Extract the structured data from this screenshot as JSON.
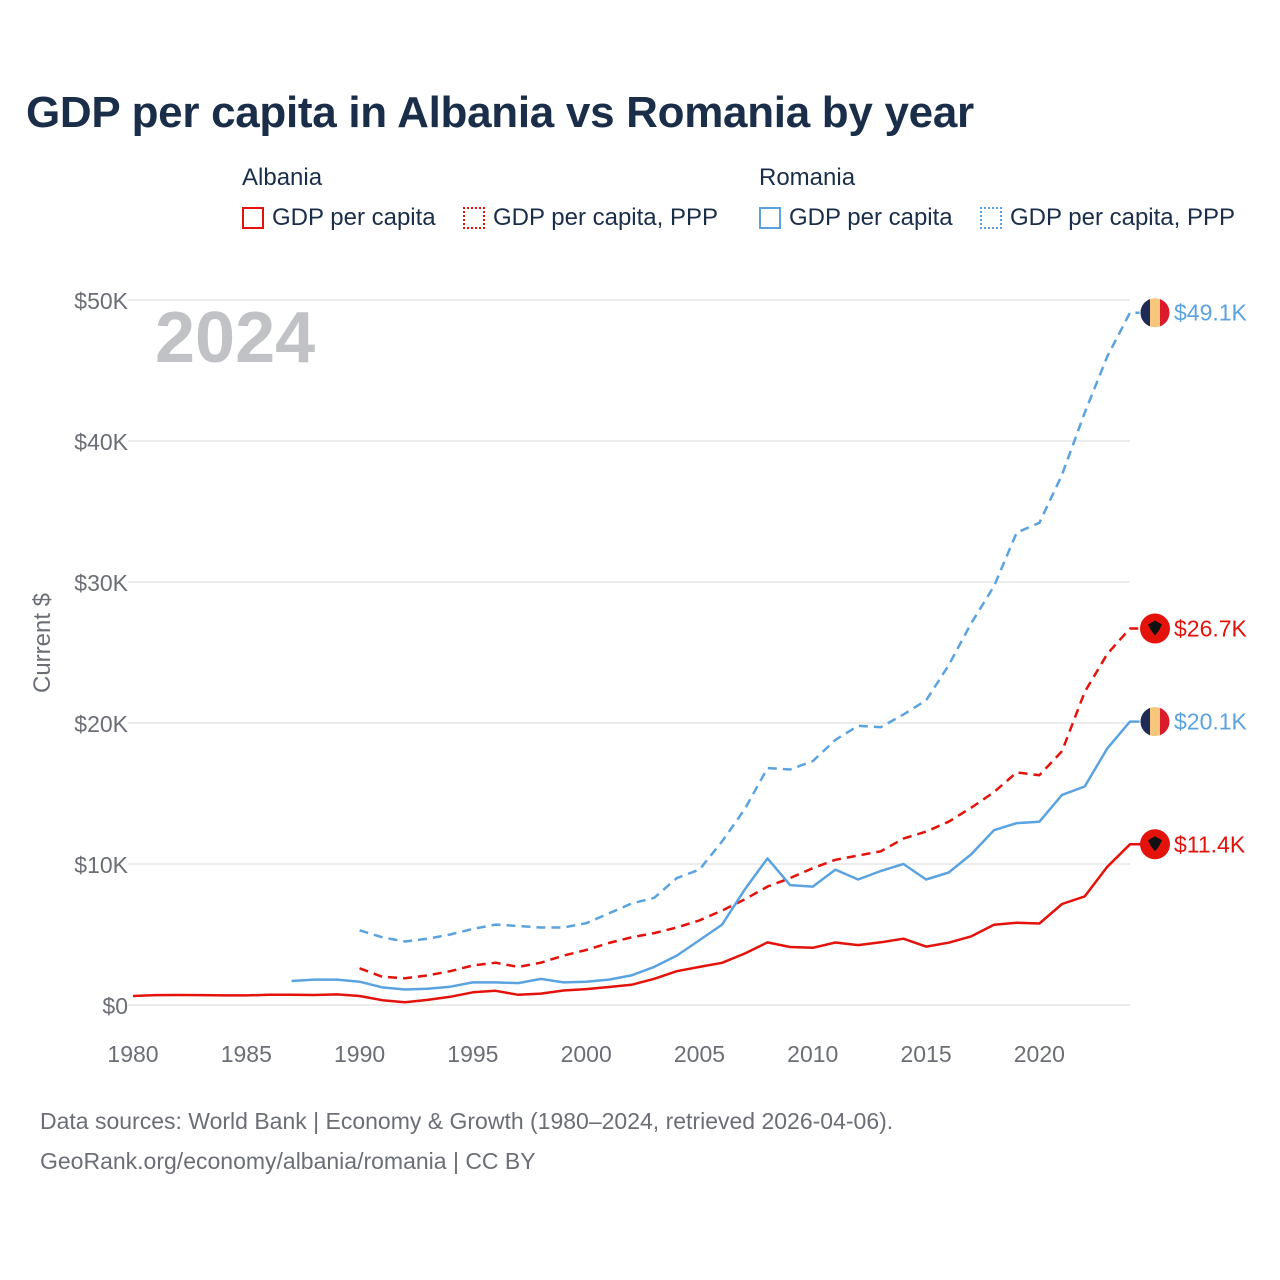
{
  "title": "GDP per capita in Albania vs Romania by year",
  "legend": {
    "albania": {
      "name": "Albania",
      "items": [
        "GDP per capita",
        "GDP per capita, PPP"
      ]
    },
    "romania": {
      "name": "Romania",
      "items": [
        "GDP per capita",
        "GDP per capita, PPP"
      ]
    }
  },
  "colors": {
    "albania": "#e3120b",
    "romania": "#5ba3e0",
    "grid": "#e6e6e6",
    "axis_text": "#6b6f75",
    "year_watermark": "#c0c2c6",
    "title": "#1a2e4a"
  },
  "year_label": "2024",
  "footer": {
    "line1": "Data sources: World Bank | Economy & Growth (1980–2024, retrieved 2026-04-06).",
    "line2": "GeoRank.org/economy/albania/romania | CC BY"
  },
  "chart_data": {
    "type": "line",
    "title": "GDP per capita in Albania vs Romania by year",
    "xlabel": "",
    "ylabel": "Current $",
    "xlim": [
      1980,
      2024
    ],
    "ylim": [
      0,
      50000
    ],
    "x_ticks": [
      1980,
      1985,
      1990,
      1995,
      2000,
      2005,
      2010,
      2015,
      2020
    ],
    "x_tick_labels": [
      "1980",
      "1985",
      "1990",
      "1995",
      "2000",
      "2005",
      "2010",
      "2015",
      "2020"
    ],
    "y_ticks": [
      0,
      10000,
      20000,
      30000,
      40000,
      50000
    ],
    "y_tick_labels": [
      "$0",
      "$10K",
      "$20K",
      "$30K",
      "$40K",
      "$50K"
    ],
    "series": [
      {
        "name": "Albania GDP per capita",
        "country": "albania",
        "style": "solid",
        "end_label": "$11.4K",
        "x": [
          1980,
          1981,
          1982,
          1983,
          1984,
          1985,
          1986,
          1987,
          1988,
          1989,
          1990,
          1991,
          1992,
          1993,
          1994,
          1995,
          1996,
          1997,
          1998,
          1999,
          2000,
          2001,
          2002,
          2003,
          2004,
          2005,
          2006,
          2007,
          2008,
          2009,
          2010,
          2011,
          2012,
          2013,
          2014,
          2015,
          2016,
          2017,
          2018,
          2019,
          2020,
          2021,
          2022,
          2023,
          2024
        ],
        "values": [
          640,
          700,
          710,
          700,
          680,
          680,
          720,
          720,
          710,
          750,
          640,
          340,
          200,
          360,
          580,
          900,
          1010,
          720,
          810,
          1030,
          1130,
          1280,
          1430,
          1860,
          2400,
          2700,
          2990,
          3650,
          4440,
          4110,
          4060,
          4430,
          4250,
          4450,
          4700,
          4140,
          4420,
          4870,
          5690,
          5840,
          5780,
          7160,
          7700,
          9800,
          11400
        ]
      },
      {
        "name": "Albania GDP per capita, PPP",
        "country": "albania",
        "style": "dashed",
        "end_label": "$26.7K",
        "x": [
          1990,
          1991,
          1992,
          1993,
          1994,
          1995,
          1996,
          1997,
          1998,
          1999,
          2000,
          2001,
          2002,
          2003,
          2004,
          2005,
          2006,
          2007,
          2008,
          2009,
          2010,
          2011,
          2012,
          2013,
          2014,
          2015,
          2016,
          2017,
          2018,
          2019,
          2020,
          2021,
          2022,
          2023,
          2024
        ],
        "values": [
          2600,
          2000,
          1900,
          2100,
          2400,
          2800,
          3000,
          2700,
          3000,
          3500,
          3900,
          4400,
          4800,
          5100,
          5500,
          6000,
          6700,
          7500,
          8400,
          9000,
          9700,
          10300,
          10600,
          10900,
          11800,
          12300,
          13000,
          14000,
          15100,
          16500,
          16300,
          18000,
          22200,
          24900,
          26700
        ]
      },
      {
        "name": "Romania GDP per capita",
        "country": "romania",
        "style": "solid",
        "end_label": "$20.1K",
        "x": [
          1987,
          1988,
          1989,
          1990,
          1991,
          1992,
          1993,
          1994,
          1995,
          1996,
          1997,
          1998,
          1999,
          2000,
          2001,
          2002,
          2003,
          2004,
          2005,
          2006,
          2007,
          2008,
          2009,
          2010,
          2011,
          2012,
          2013,
          2014,
          2015,
          2016,
          2017,
          2018,
          2019,
          2020,
          2021,
          2022,
          2023,
          2024
        ],
        "values": [
          1700,
          1800,
          1800,
          1650,
          1250,
          1100,
          1150,
          1300,
          1600,
          1600,
          1550,
          1850,
          1600,
          1650,
          1800,
          2100,
          2700,
          3500,
          4600,
          5700,
          8200,
          10400,
          8500,
          8400,
          9600,
          8900,
          9500,
          10000,
          8900,
          9400,
          10700,
          12400,
          12900,
          13000,
          14900,
          15500,
          18200,
          20100
        ]
      },
      {
        "name": "Romania GDP per capita, PPP",
        "country": "romania",
        "style": "dashed",
        "end_label": "$49.1K",
        "x": [
          1990,
          1991,
          1992,
          1993,
          1994,
          1995,
          1996,
          1997,
          1998,
          1999,
          2000,
          2001,
          2002,
          2003,
          2004,
          2005,
          2006,
          2007,
          2008,
          2009,
          2010,
          2011,
          2012,
          2013,
          2014,
          2015,
          2016,
          2017,
          2018,
          2019,
          2020,
          2021,
          2022,
          2023,
          2024
        ],
        "values": [
          5300,
          4800,
          4500,
          4700,
          5000,
          5400,
          5700,
          5600,
          5500,
          5500,
          5800,
          6500,
          7200,
          7600,
          9000,
          9600,
          11600,
          13900,
          16800,
          16700,
          17300,
          18800,
          19800,
          19700,
          20600,
          21600,
          24100,
          27100,
          29700,
          33500,
          34200,
          37600,
          42000,
          46000,
          49100
        ]
      }
    ]
  }
}
